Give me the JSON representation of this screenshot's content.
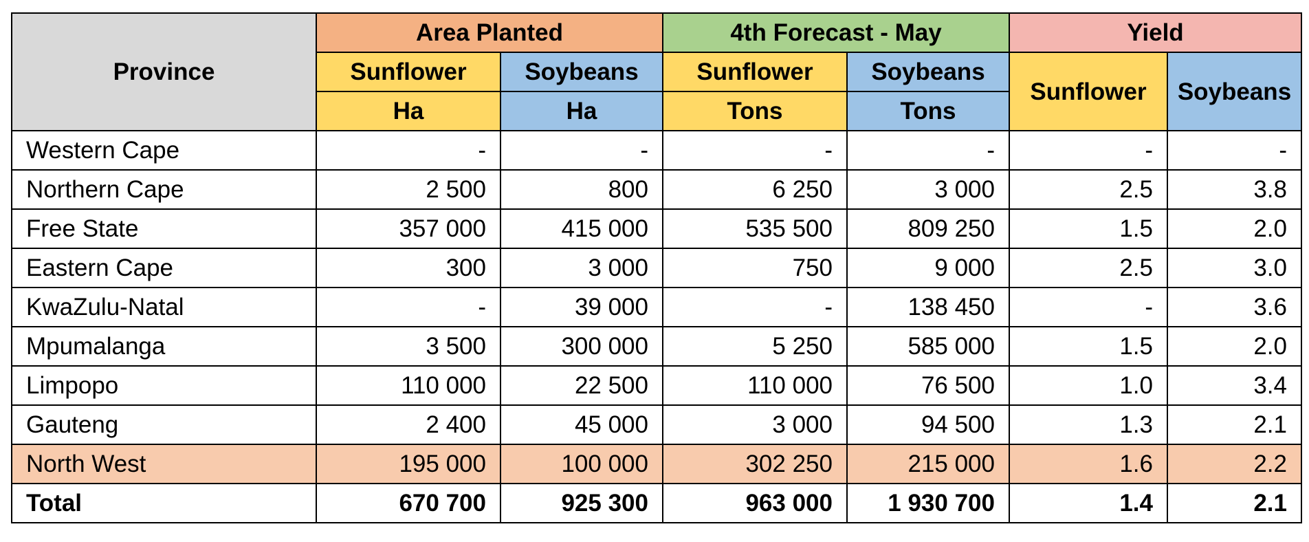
{
  "chart_data": {
    "type": "table",
    "header": {
      "province": "Province",
      "groups": [
        "Area Planted",
        "4th Forecast - May",
        "Yield"
      ],
      "crops": [
        "Sunflower",
        "Soybeans"
      ],
      "units": [
        "Ha",
        "Ha",
        "Tons",
        "Tons"
      ]
    },
    "colors": {
      "province_header": "#d9d9d9",
      "area_planted": "#f4b183",
      "forecast": "#a9d18e",
      "yield": "#f4b6b0",
      "sunflower": "#ffd966",
      "soybeans": "#9dc3e6",
      "highlight_row": "#f8cbad"
    },
    "rows": [
      {
        "province": "Western Cape",
        "area_sunflower": "-",
        "area_soybeans": "-",
        "forecast_sunflower": "-",
        "forecast_soybeans": "-",
        "yield_sunflower": "-",
        "yield_soybeans": "-"
      },
      {
        "province": "Northern Cape",
        "area_sunflower": "2 500",
        "area_soybeans": "800",
        "forecast_sunflower": "6 250",
        "forecast_soybeans": "3 000",
        "yield_sunflower": "2.5",
        "yield_soybeans": "3.8"
      },
      {
        "province": "Free State",
        "area_sunflower": "357 000",
        "area_soybeans": "415 000",
        "forecast_sunflower": "535 500",
        "forecast_soybeans": "809 250",
        "yield_sunflower": "1.5",
        "yield_soybeans": "2.0"
      },
      {
        "province": "Eastern Cape",
        "area_sunflower": "300",
        "area_soybeans": "3 000",
        "forecast_sunflower": "750",
        "forecast_soybeans": "9 000",
        "yield_sunflower": "2.5",
        "yield_soybeans": "3.0"
      },
      {
        "province": "KwaZulu-Natal",
        "area_sunflower": "-",
        "area_soybeans": "39 000",
        "forecast_sunflower": "-",
        "forecast_soybeans": "138 450",
        "yield_sunflower": "-",
        "yield_soybeans": "3.6"
      },
      {
        "province": "Mpumalanga",
        "area_sunflower": "3 500",
        "area_soybeans": "300 000",
        "forecast_sunflower": "5 250",
        "forecast_soybeans": "585 000",
        "yield_sunflower": "1.5",
        "yield_soybeans": "2.0"
      },
      {
        "province": "Limpopo",
        "area_sunflower": "110 000",
        "area_soybeans": "22 500",
        "forecast_sunflower": "110 000",
        "forecast_soybeans": "76 500",
        "yield_sunflower": "1.0",
        "yield_soybeans": "3.4"
      },
      {
        "province": "Gauteng",
        "area_sunflower": "2 400",
        "area_soybeans": "45 000",
        "forecast_sunflower": "3 000",
        "forecast_soybeans": "94 500",
        "yield_sunflower": "1.3",
        "yield_soybeans": "2.1"
      },
      {
        "province": "North West",
        "area_sunflower": "195 000",
        "area_soybeans": "100 000",
        "forecast_sunflower": "302 250",
        "forecast_soybeans": "215 000",
        "yield_sunflower": "1.6",
        "yield_soybeans": "2.2"
      }
    ],
    "total": {
      "province": "Total",
      "area_sunflower": "670 700",
      "area_soybeans": "925 300",
      "forecast_sunflower": "963 000",
      "forecast_soybeans": "1 930 700",
      "yield_sunflower": "1.4",
      "yield_soybeans": "2.1"
    }
  }
}
